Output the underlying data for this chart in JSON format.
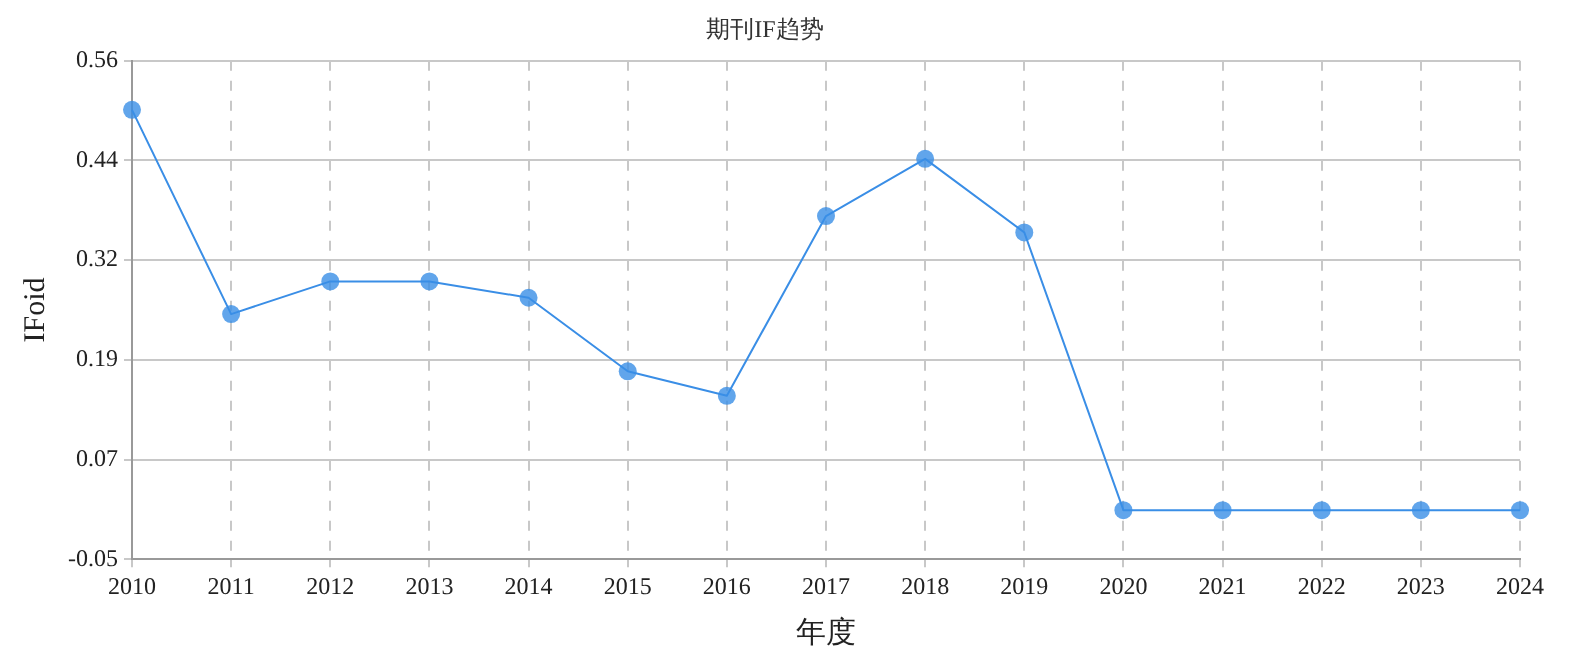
{
  "chart_data": {
    "type": "line",
    "title": "期刊IF趋势",
    "xlabel": "年度",
    "ylabel": "IFoid",
    "categories": [
      "2010",
      "2011",
      "2012",
      "2013",
      "2014",
      "2015",
      "2016",
      "2017",
      "2018",
      "2019",
      "2020",
      "2021",
      "2022",
      "2023",
      "2024"
    ],
    "series": [
      {
        "color": "#3a8ee6",
        "values": [
          0.5,
          0.25,
          0.29,
          0.29,
          0.27,
          0.18,
          0.15,
          0.37,
          0.44,
          0.35,
          0.01,
          0.01,
          0.01,
          0.01,
          0.01
        ]
      }
    ],
    "ylim": [
      -0.05,
      0.56
    ],
    "yticks": [
      -0.05,
      {
        "value": 0.072,
        "label": "0.07"
      },
      {
        "value": 0.194,
        "label": "0.19"
      },
      {
        "value": 0.316,
        "label": "0.32"
      },
      {
        "value": 0.438,
        "label": "0.44"
      },
      0.56
    ],
    "grid": true,
    "marker": "circle",
    "line_style": "solid",
    "legend": false
  }
}
